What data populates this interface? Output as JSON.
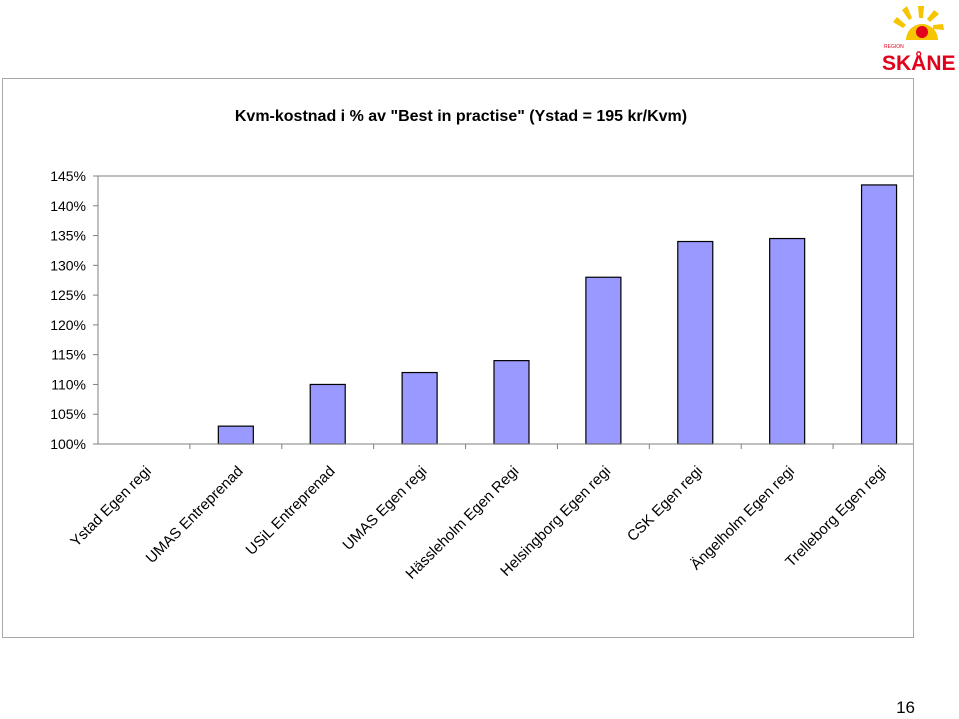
{
  "logo": {
    "small_text": "REGION",
    "brand_text": "SKÅNE"
  },
  "page_number": "16",
  "chart_data": {
    "type": "bar",
    "title": "Kvm-kostnad i % av \"Best in practise\" (Ystad = 195 kr/Kvm)",
    "xlabel": "",
    "ylabel": "",
    "categories": [
      "Ystad Egen regi",
      "UMAS Entreprenad",
      "USiL Entreprenad",
      "UMAS Egen regi",
      "Hässleholm Egen Regi",
      "Helsingborg Egen regi",
      "CSK Egen regi",
      "Ängelholm Egen regi",
      "Trelleborg Egen regi"
    ],
    "values": [
      100,
      103,
      110,
      112,
      114,
      128,
      134,
      134.5,
      143.5
    ],
    "ylim": [
      100,
      145
    ],
    "yticks": [
      100,
      105,
      110,
      115,
      120,
      125,
      130,
      135,
      140,
      145
    ],
    "ytick_labels": [
      "100%",
      "105%",
      "110%",
      "115%",
      "120%",
      "125%",
      "130%",
      "135%",
      "140%",
      "145%"
    ],
    "grid": false,
    "legend": "none",
    "colors": {
      "bar_fill": "#9999ff",
      "bar_stroke": "#000000",
      "axis": "#808080",
      "frame": "#a8a8a8"
    }
  }
}
